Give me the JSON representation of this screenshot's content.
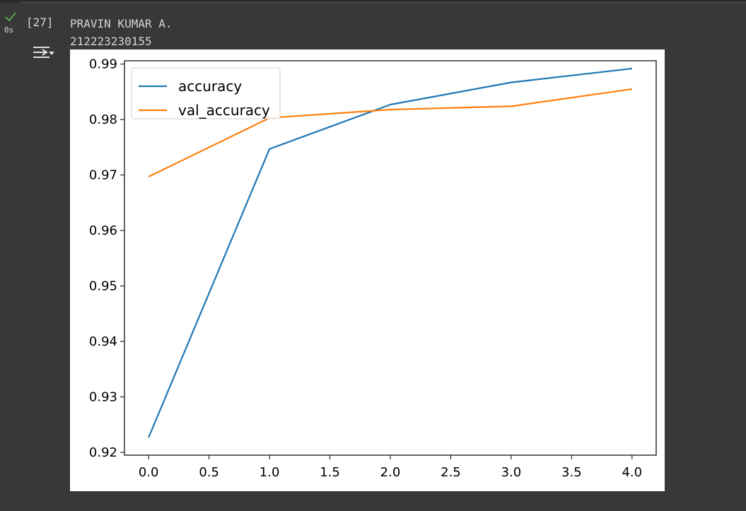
{
  "cell": {
    "execution_count": "[27]",
    "status": "success",
    "run_time": "0s",
    "output_lines": [
      "PRAVIN KUMAR A.",
      "212223230155"
    ]
  },
  "colors": {
    "success": "#5cb85c",
    "accuracy": "#1f77b4",
    "val_accuracy": "#ff7f0e"
  },
  "chart_data": {
    "type": "line",
    "title": "",
    "xlabel": "",
    "ylabel": "",
    "x": [
      0,
      1,
      2,
      3,
      4
    ],
    "series": [
      {
        "name": "accuracy",
        "values": [
          0.9227,
          0.9747,
          0.9827,
          0.9867,
          0.9892
        ]
      },
      {
        "name": "val_accuracy",
        "values": [
          0.9697,
          0.9803,
          0.9818,
          0.9824,
          0.9855
        ]
      }
    ],
    "xlim": [
      -0.2,
      4.2
    ],
    "ylim": [
      0.9195,
      0.9906
    ],
    "xticks": [
      0.0,
      0.5,
      1.0,
      1.5,
      2.0,
      2.5,
      3.0,
      3.5,
      4.0
    ],
    "xtick_labels": [
      "0.0",
      "0.5",
      "1.0",
      "1.5",
      "2.0",
      "2.5",
      "3.0",
      "3.5",
      "4.0"
    ],
    "yticks": [
      0.92,
      0.93,
      0.94,
      0.95,
      0.96,
      0.97,
      0.98,
      0.99
    ],
    "ytick_labels": [
      "0.92",
      "0.93",
      "0.94",
      "0.95",
      "0.96",
      "0.97",
      "0.98",
      "0.99"
    ],
    "grid": false,
    "legend": "upper-left"
  }
}
